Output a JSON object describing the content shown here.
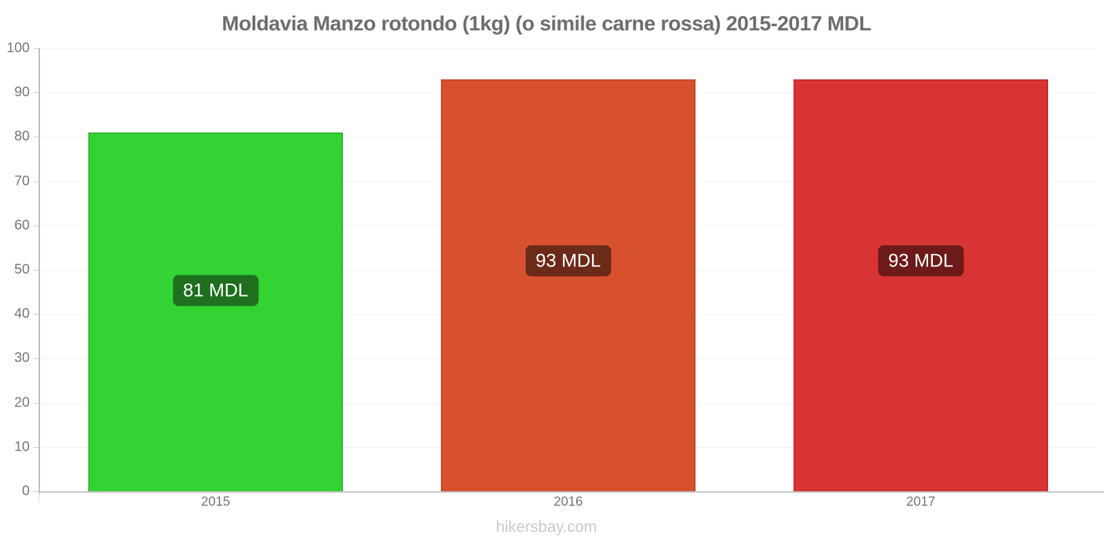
{
  "chart_data": {
    "type": "bar",
    "title": "Moldavia Manzo rotondo (1kg) (o simile carne rossa) 2015-2017 MDL",
    "unit": "MDL",
    "categories": [
      "2015",
      "2016",
      "2017"
    ],
    "values": [
      81,
      93,
      93
    ],
    "bar_labels": [
      "81 MDL",
      "93 MDL",
      "93 MDL"
    ],
    "ylim": [
      0,
      100
    ],
    "yticks": [
      0,
      10,
      20,
      30,
      40,
      50,
      60,
      70,
      80,
      90,
      100
    ],
    "grid": true,
    "legend": "none",
    "bar_styles": [
      {
        "fill": "#33d334",
        "border": "#2db52d",
        "label_bg": "#1f6f1f"
      },
      {
        "fill": "#d8512f",
        "border": "#c2492a",
        "label_bg": "#6c2a19"
      },
      {
        "fill": "#d93434",
        "border": "#c22e2e",
        "label_bg": "#6c1a1a"
      }
    ],
    "label_text_color": "#ffffff"
  },
  "colors": {
    "title": "#6d6d6d",
    "axis_line": "#b9b9b9",
    "baseline": "#c4c4c4",
    "grid": "#f2f2f2",
    "tick_label": "#757575",
    "footer": "#c9c9c9",
    "background": "#ffffff"
  },
  "footer": {
    "text": "hikersbay.com"
  }
}
